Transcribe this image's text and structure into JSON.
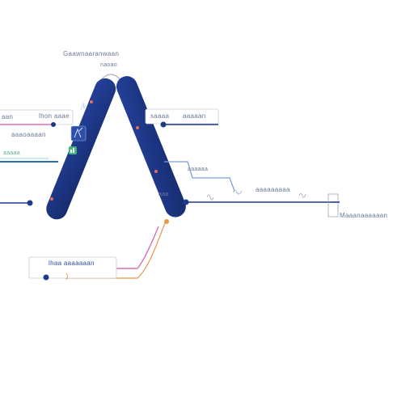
{
  "diagram": {
    "colors": {
      "navy": "#1f3a8a",
      "navy_dark": "#162c6e",
      "line_gray": "#9aa3b5",
      "pink": "#d66fb3",
      "orange": "#e59a4a",
      "light_blue": "#7f9fd9",
      "green": "#3fb57a",
      "teal": "#2aa59a"
    },
    "labels": {
      "top_title": "Gaawnaaranwaan",
      "top_subtitle": "naoao",
      "left_top": "aan",
      "left_top_2": "lhon aaae",
      "left_mid": "aaaoaaaan",
      "left_green": "aaaaa",
      "right_top": "saaaa",
      "right_top_2": "aaaaan",
      "right_mid_1": "aaaaaa",
      "right_mid_2": "aaaaaaaaa",
      "right_end": "Maaanaaaaaan",
      "bottom_box": "lhaa aaaaaaan",
      "node_label": "aaa"
    },
    "icons": {
      "chart_icon": "bar-chart-icon",
      "person_icon": "person-icon",
      "bolt_icon": "bolt-icon",
      "wave_icon": "wave-icon",
      "bracket_icon": "bracket-icon"
    }
  }
}
